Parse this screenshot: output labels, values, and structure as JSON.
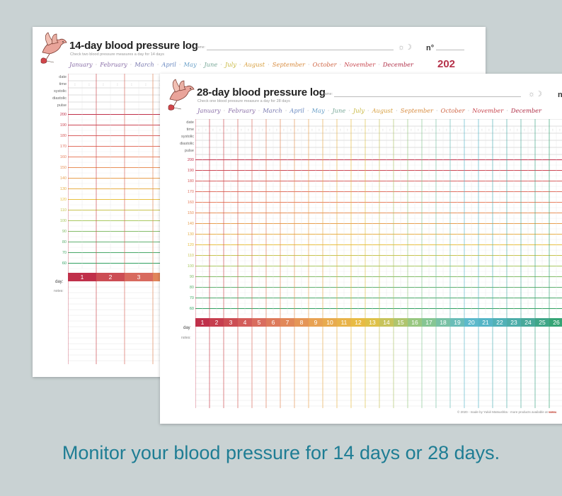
{
  "colors": {
    "background": "#c9d2d3",
    "caption": "#1e7d94",
    "year": "#b5324a",
    "day_gradient": [
      "#c0304a",
      "#d86a5e",
      "#e8a055",
      "#e8c040",
      "#8ec888",
      "#58b8d0",
      "#48a898",
      "#20a050"
    ],
    "tick_gradient": [
      "#c0304a",
      "#d86060",
      "#e88060",
      "#e8a050",
      "#e8c040",
      "#a8c860",
      "#60b070",
      "#30a060"
    ]
  },
  "log14": {
    "title": "14-day blood pressure log",
    "subtitle": "Check two blood pressure measures a day for 14 days",
    "name_label": "name:",
    "number_label": "n°",
    "sun_moon": "☼☽",
    "year": "202",
    "row_labels": [
      "date",
      "time",
      "systolic",
      "diastolic",
      "pulse"
    ],
    "ticks": [
      "200",
      "190",
      "180",
      "170",
      "160",
      "150",
      "140",
      "130",
      "120",
      "110",
      "100",
      "90",
      "80",
      "70",
      "60"
    ],
    "day_label": "day:",
    "days": [
      "1",
      "2",
      "3"
    ],
    "notes_label": "notes:"
  },
  "log28": {
    "title": "28-day blood pressure log",
    "subtitle": "Check one blood pressure measure a day for 28 days",
    "name_label": "name:",
    "number_label": "n",
    "sun_moon": "☼☽",
    "row_labels": [
      "date",
      "time",
      "systolic",
      "diastolic",
      "pulse"
    ],
    "ticks": [
      "200",
      "190",
      "180",
      "170",
      "160",
      "150",
      "140",
      "130",
      "120",
      "110",
      "100",
      "90",
      "80",
      "70",
      "60"
    ],
    "day_label": "day",
    "days": [
      "1",
      "2",
      "3",
      "4",
      "5",
      "6",
      "7",
      "8",
      "9",
      "10",
      "11",
      "12",
      "13",
      "14",
      "15",
      "16",
      "17",
      "18",
      "19",
      "20",
      "21",
      "22",
      "23",
      "24",
      "25",
      "26"
    ],
    "notes_label": "notes:",
    "footer_text": "© 2020 - made by Yukié Matsushita - more products available at ",
    "footer_link": "www."
  },
  "months": [
    {
      "name": "January",
      "color": "#8a6fa8"
    },
    {
      "name": "February",
      "color": "#8a6fa8"
    },
    {
      "name": "March",
      "color": "#7a7ab0"
    },
    {
      "name": "April",
      "color": "#6888c0"
    },
    {
      "name": "May",
      "color": "#6aa0c8"
    },
    {
      "name": "June",
      "color": "#78a898"
    },
    {
      "name": "July",
      "color": "#c8b840"
    },
    {
      "name": "August",
      "color": "#d8a040"
    },
    {
      "name": "September",
      "color": "#d88c40"
    },
    {
      "name": "October",
      "color": "#d06848"
    },
    {
      "name": "November",
      "color": "#c84850"
    },
    {
      "name": "December",
      "color": "#b03048"
    }
  ],
  "caption": "Monitor your blood pressure for 14 days or 28 days."
}
